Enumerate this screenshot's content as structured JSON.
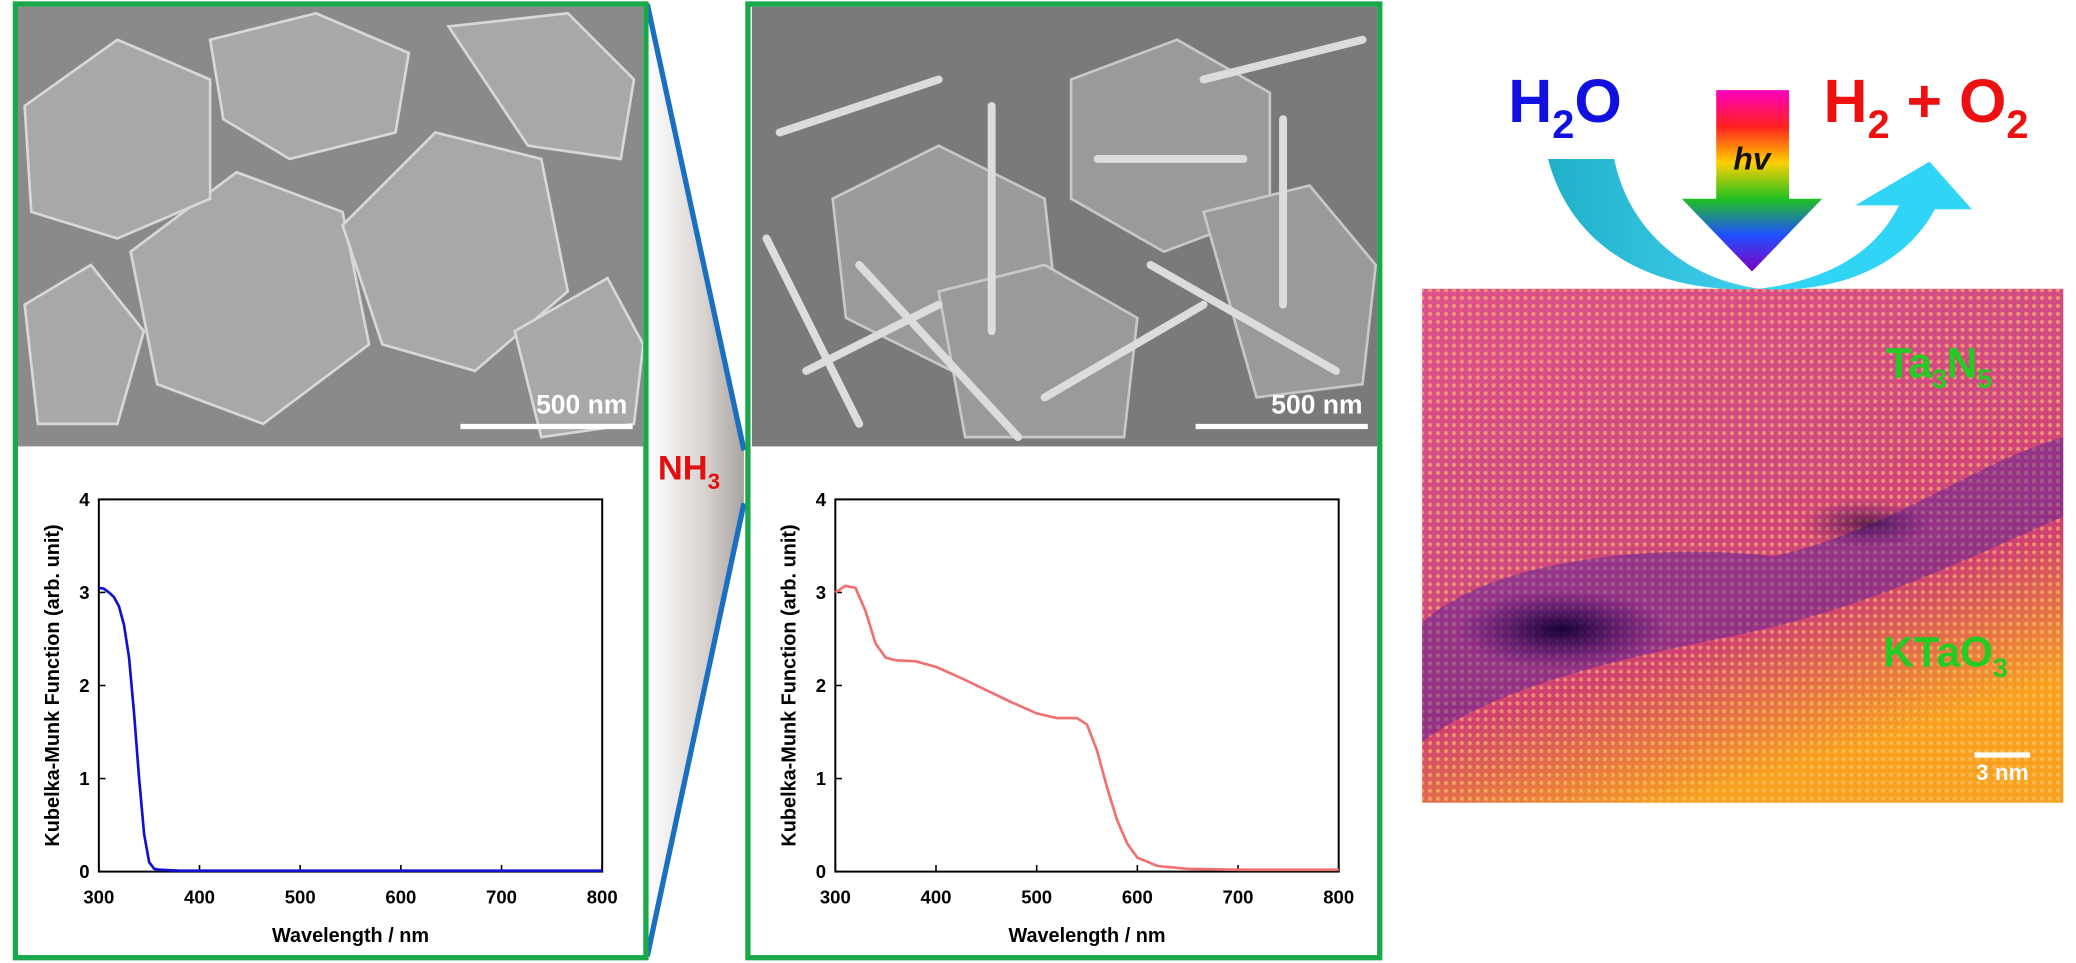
{
  "figure": {
    "scale_bar_left": "500 nm",
    "scale_bar_middle": "500 nm",
    "reagent": [
      "NH",
      "3"
    ],
    "reactant": [
      "H",
      "2",
      "O"
    ],
    "light": "hv",
    "products": [
      "H",
      "2",
      " + O",
      "2"
    ],
    "layer_top": [
      "Ta",
      "3",
      "N",
      "5"
    ],
    "layer_bottom": [
      "KTaO",
      "3"
    ],
    "scale_bar_right": "3 nm"
  },
  "chart_data": [
    {
      "type": "line",
      "xlabel": "Wavelength / nm",
      "ylabel": "Kubelka-Munk Function (arb. unit)",
      "x": [
        300,
        305,
        310,
        315,
        320,
        325,
        330,
        335,
        340,
        345,
        350,
        355,
        360,
        380,
        400,
        500,
        600,
        700,
        800
      ],
      "values": [
        3.05,
        3.04,
        3.0,
        2.95,
        2.85,
        2.65,
        2.3,
        1.7,
        1.0,
        0.4,
        0.1,
        0.03,
        0.02,
        0.01,
        0.01,
        0.01,
        0.01,
        0.01,
        0.01
      ],
      "color": "#1010d0",
      "xlim": [
        300,
        800
      ],
      "ylim": [
        0,
        4
      ],
      "xticks": [
        300,
        400,
        500,
        600,
        700,
        800
      ],
      "yticks": [
        0,
        1,
        2,
        3,
        4
      ]
    },
    {
      "type": "line",
      "xlabel": "Wavelength / nm",
      "ylabel": "Kubelka-Munk Function (arb. unit)",
      "x": [
        300,
        310,
        320,
        330,
        340,
        350,
        360,
        380,
        400,
        425,
        450,
        475,
        500,
        520,
        540,
        550,
        560,
        570,
        580,
        590,
        600,
        620,
        650,
        700,
        800
      ],
      "values": [
        3.0,
        3.07,
        3.05,
        2.8,
        2.45,
        2.3,
        2.27,
        2.26,
        2.2,
        2.08,
        1.95,
        1.82,
        1.7,
        1.65,
        1.65,
        1.58,
        1.3,
        0.9,
        0.55,
        0.3,
        0.15,
        0.06,
        0.03,
        0.02,
        0.02
      ],
      "color": "#f07070",
      "xlim": [
        300,
        800
      ],
      "ylim": [
        0,
        4
      ],
      "xticks": [
        300,
        400,
        500,
        600,
        700,
        800
      ],
      "yticks": [
        0,
        1,
        2,
        3,
        4
      ]
    }
  ]
}
